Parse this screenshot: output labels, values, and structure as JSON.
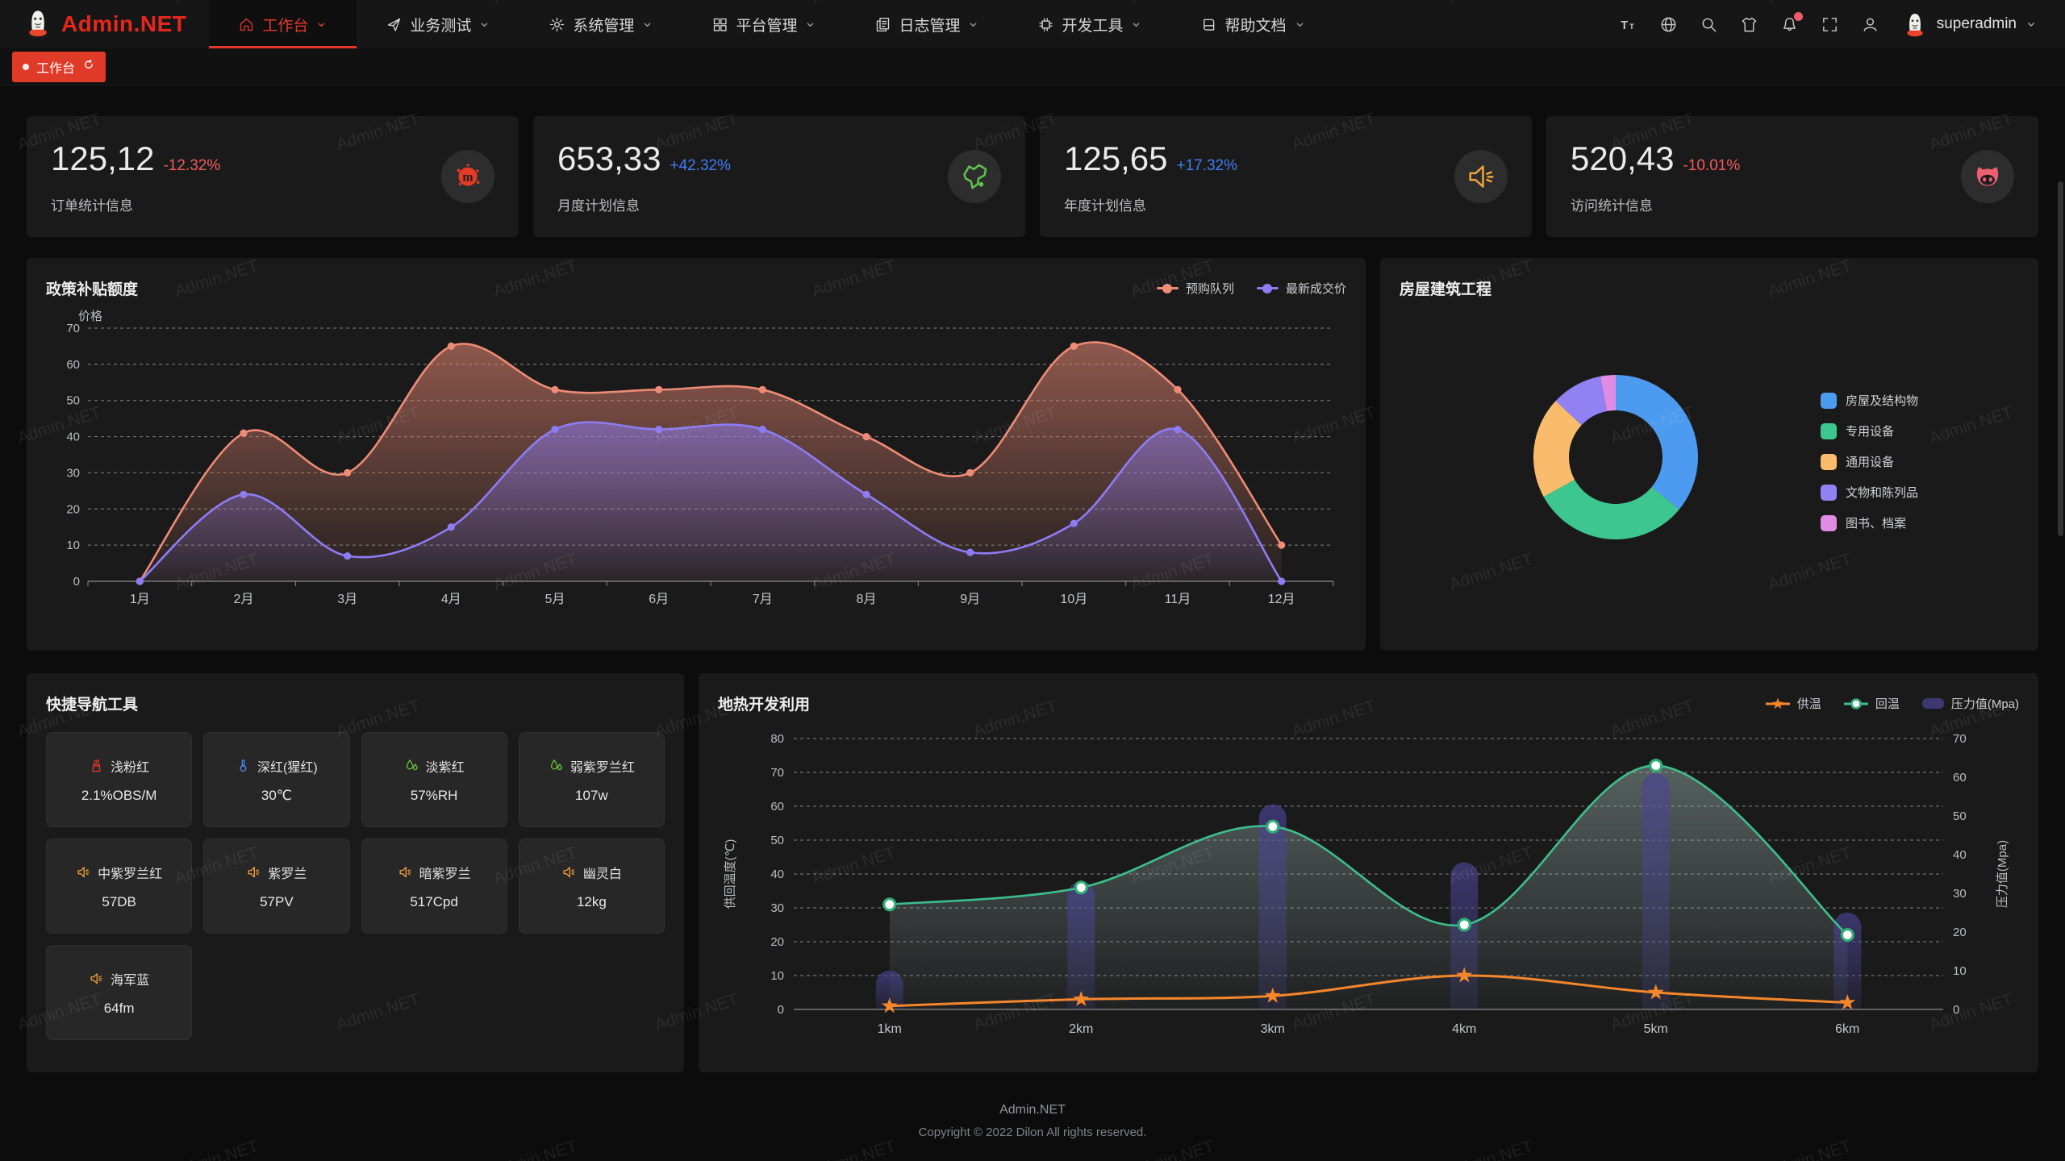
{
  "brand": {
    "name": "Admin.NET",
    "accent": "#e5281b"
  },
  "navbar": {
    "menu": [
      {
        "id": "workbench",
        "label": "工作台",
        "icon": "home",
        "active": true
      },
      {
        "id": "business-test",
        "label": "业务测试",
        "icon": "send",
        "active": false
      },
      {
        "id": "system-manage",
        "label": "系统管理",
        "icon": "gear",
        "active": false
      },
      {
        "id": "platform-manage",
        "label": "平台管理",
        "icon": "grid",
        "active": false
      },
      {
        "id": "log-manage",
        "label": "日志管理",
        "icon": "log",
        "active": false
      },
      {
        "id": "dev-tools",
        "label": "开发工具",
        "icon": "chip",
        "active": false
      },
      {
        "id": "help-docs",
        "label": "帮助文档",
        "icon": "doc",
        "active": false
      }
    ],
    "right_icons": [
      {
        "id": "font-size",
        "badge": false
      },
      {
        "id": "language",
        "badge": false
      },
      {
        "id": "search",
        "badge": false
      },
      {
        "id": "theme",
        "badge": false
      },
      {
        "id": "bell",
        "badge": true
      },
      {
        "id": "fullscreen",
        "badge": false
      },
      {
        "id": "user",
        "badge": false
      }
    ],
    "username": "superadmin"
  },
  "tabbar": {
    "active_tab": "工作台"
  },
  "stat_cards": [
    {
      "value": "125,12",
      "delta": "-12.32%",
      "trend": "down",
      "label": "订单统计信息",
      "icon": "splash"
    },
    {
      "value": "653,33",
      "delta": "+42.32%",
      "trend": "up",
      "label": "月度计划信息",
      "icon": "map"
    },
    {
      "value": "125,65",
      "delta": "+17.32%",
      "trend": "up",
      "label": "年度计划信息",
      "icon": "speaker"
    },
    {
      "value": "520,43",
      "delta": "-10.01%",
      "trend": "down",
      "label": "访问统计信息",
      "icon": "cat"
    }
  ],
  "chart_data": [
    {
      "type": "area",
      "title": "政策补贴额度",
      "ylabel": "价格",
      "ylim": [
        0,
        70
      ],
      "grid": true,
      "legend_position": "top-right",
      "categories": [
        "1月",
        "2月",
        "3月",
        "4月",
        "5月",
        "6月",
        "7月",
        "8月",
        "9月",
        "10月",
        "11月",
        "12月"
      ],
      "series": [
        {
          "name": "预购队列",
          "color": "#ee8b76",
          "values": [
            0,
            41,
            30,
            65,
            53,
            53,
            53,
            40,
            30,
            65,
            53,
            10
          ]
        },
        {
          "name": "最新成交价",
          "color": "#8d7cf3",
          "values": [
            0,
            24,
            7,
            15,
            42,
            42,
            42,
            24,
            8,
            16,
            42,
            0
          ]
        }
      ]
    },
    {
      "type": "pie",
      "title": "房屋建筑工程",
      "legend_position": "right",
      "slices": [
        {
          "name": "房屋及结构物",
          "value": 36,
          "color": "#4d9bf0"
        },
        {
          "name": "专用设备",
          "value": 31,
          "color": "#3ec690"
        },
        {
          "name": "通用设备",
          "value": 20,
          "color": "#f8bc6c"
        },
        {
          "name": "文物和陈列品",
          "value": 10,
          "color": "#9181f2"
        },
        {
          "name": "图书、档案",
          "value": 3,
          "color": "#e08ce4"
        }
      ]
    },
    {
      "type": "line+bar",
      "title": "地热开发利用",
      "ylabel_left": "供回温度(℃)",
      "ylabel_right": "压力值(Mpa)",
      "ylim_left": [
        0,
        80
      ],
      "ylim_right": [
        0,
        70
      ],
      "grid": true,
      "legend_position": "top-right",
      "categories": [
        "1km",
        "2km",
        "3km",
        "4km",
        "5km",
        "6km"
      ],
      "series": [
        {
          "name": "供温",
          "kind": "line",
          "axis": "left",
          "marker": "star",
          "color": "#f5862b",
          "values": [
            1,
            3,
            4,
            10,
            5,
            2
          ]
        },
        {
          "name": "回温",
          "kind": "line",
          "axis": "left",
          "marker": "circle",
          "color": "#3dbe8b",
          "values": [
            31,
            36,
            54,
            25,
            72,
            22
          ]
        },
        {
          "name": "压力值(Mpa)",
          "kind": "bar",
          "axis": "right",
          "marker": "bar",
          "color": "#4a4494",
          "values": [
            10,
            33,
            53,
            38,
            61,
            25
          ]
        }
      ]
    }
  ],
  "quick_nav": {
    "title": "快捷导航工具",
    "items": [
      {
        "id": "light-pink",
        "icon": "factory",
        "icon_color": "#e23b2b",
        "name": "浅粉红",
        "value": "2.1%OBS/M"
      },
      {
        "id": "crimson",
        "icon": "thermometer",
        "icon_color": "#4a8af4",
        "name": "深红(猩红)",
        "value": "30℃"
      },
      {
        "id": "pale-violet",
        "icon": "humidity",
        "icon_color": "#67c23a",
        "name": "淡紫红",
        "value": "57%RH"
      },
      {
        "id": "weak-violet-red",
        "icon": "humidity",
        "icon_color": "#67c23a",
        "name": "弱紫罗兰红",
        "value": "107w"
      },
      {
        "id": "medium-violet-red",
        "icon": "speaker",
        "icon_color": "#f0a030",
        "name": "中紫罗兰红",
        "value": "57DB"
      },
      {
        "id": "violet",
        "icon": "speaker",
        "icon_color": "#f0a030",
        "name": "紫罗兰",
        "value": "57PV"
      },
      {
        "id": "dark-violet",
        "icon": "speaker",
        "icon_color": "#f0a030",
        "name": "暗紫罗兰",
        "value": "517Cpd"
      },
      {
        "id": "ghost-white",
        "icon": "speaker",
        "icon_color": "#f0a030",
        "name": "幽灵白",
        "value": "12kg"
      },
      {
        "id": "navy-blue",
        "icon": "speaker",
        "icon_color": "#f0a030",
        "name": "海军蓝",
        "value": "64fm"
      }
    ]
  },
  "footer": {
    "line1": "Admin.NET",
    "line2": "Copyright © 2022 Dilon All rights reserved."
  },
  "watermark_text": "Admin.NET"
}
